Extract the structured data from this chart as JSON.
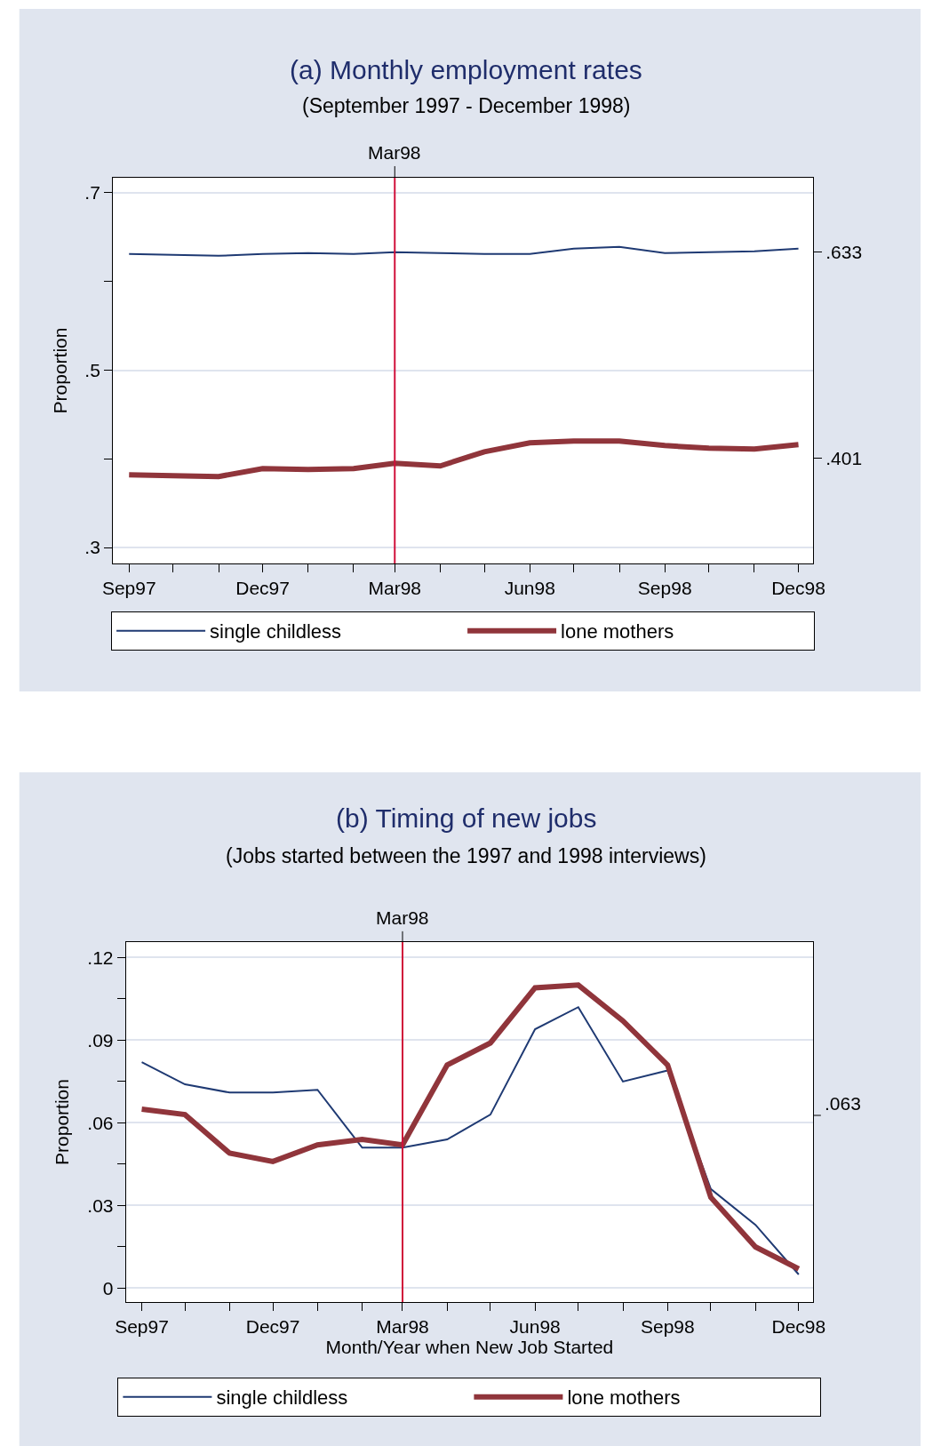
{
  "chart_data": [
    {
      "type": "line",
      "title": "(a) Monthly employment rates",
      "subtitle": "(September 1997 - December 1998)",
      "ylabel": "Proportion",
      "x": [
        "1997-09",
        "1997-10",
        "1997-11",
        "1997-12",
        "1998-01",
        "1998-02",
        "1998-03",
        "1998-04",
        "1998-05",
        "1998-06",
        "1998-07",
        "1998-08",
        "1998-09",
        "1998-10",
        "1998-11",
        "1998-12"
      ],
      "series": [
        {
          "name": "single childless",
          "color": "#1f3a73",
          "values": [
            0.631,
            0.63,
            0.629,
            0.631,
            0.632,
            0.631,
            0.633,
            0.632,
            0.631,
            0.631,
            0.637,
            0.639,
            0.632,
            0.633,
            0.634,
            0.637
          ]
        },
        {
          "name": "lone mothers",
          "color": "#90353b",
          "values": [
            0.382,
            0.381,
            0.38,
            0.389,
            0.388,
            0.389,
            0.395,
            0.392,
            0.408,
            0.418,
            0.42,
            0.42,
            0.415,
            0.412,
            0.411,
            0.416
          ]
        }
      ],
      "xlim": [
        "1997-08-21",
        "1998-12-11"
      ],
      "xticks": [
        {
          "value": "1997-09",
          "label": "Sep97"
        },
        {
          "value": "1997-10",
          "label": null
        },
        {
          "value": "1997-11",
          "label": null
        },
        {
          "value": "1997-12",
          "label": "Dec97"
        },
        {
          "value": "1998-01",
          "label": null
        },
        {
          "value": "1998-02",
          "label": null
        },
        {
          "value": "1998-03",
          "label": "Mar98"
        },
        {
          "value": "1998-04",
          "label": null
        },
        {
          "value": "1998-05",
          "label": null
        },
        {
          "value": "1998-06",
          "label": "Jun98"
        },
        {
          "value": "1998-07",
          "label": null
        },
        {
          "value": "1998-08",
          "label": null
        },
        {
          "value": "1998-09",
          "label": "Sep98"
        },
        {
          "value": "1998-10",
          "label": null
        },
        {
          "value": "1998-11",
          "label": null
        },
        {
          "value": "1998-12",
          "label": "Dec98"
        }
      ],
      "ylim": [
        0.282,
        0.717
      ],
      "yticks": [
        {
          "value": 0.7,
          "label": ".7"
        },
        {
          "value": 0.6,
          "label": null
        },
        {
          "value": 0.5,
          "label": ".5"
        },
        {
          "value": 0.4,
          "label": null
        },
        {
          "value": 0.3,
          "label": ".3"
        }
      ],
      "y2lim": [
        0.282,
        0.717
      ],
      "y2ticks": [
        {
          "value": 0.633,
          "label": ".633"
        },
        {
          "value": 0.401,
          "label": ".401"
        }
      ],
      "ref_lines": [
        {
          "axis": "x",
          "value": "1998-03",
          "label": "Mar98",
          "color": "#d0103a"
        }
      ],
      "grid": "y",
      "legend": "bottom"
    },
    {
      "type": "line",
      "title": "(b) Timing of new jobs",
      "subtitle": "(Jobs started between the 1997 and 1998 interviews)",
      "ylabel": "Proportion",
      "xlabel": "Month/Year when New Job Started",
      "x": [
        "1997-09",
        "1997-10",
        "1997-11",
        "1997-12",
        "1998-01",
        "1998-02",
        "1998-03",
        "1998-04",
        "1998-05",
        "1998-06",
        "1998-07",
        "1998-08",
        "1998-09",
        "1998-10",
        "1998-11",
        "1998-12"
      ],
      "series": [
        {
          "name": "single childless",
          "color": "#1f3a73",
          "values": [
            0.082,
            0.074,
            0.071,
            0.071,
            0.072,
            0.051,
            0.051,
            0.054,
            0.063,
            0.094,
            0.102,
            0.075,
            0.079,
            0.036,
            0.023,
            0.005
          ]
        },
        {
          "name": "lone mothers",
          "color": "#90353b",
          "values": [
            0.065,
            0.063,
            0.049,
            0.046,
            0.052,
            0.054,
            0.052,
            0.081,
            0.089,
            0.109,
            0.11,
            0.097,
            0.081,
            0.033,
            0.015,
            0.007
          ]
        }
      ],
      "xlim": [
        "1997-08-21",
        "1998-12-11"
      ],
      "xticks": [
        {
          "value": "1997-09",
          "label": "Sep97"
        },
        {
          "value": "1997-10",
          "label": null
        },
        {
          "value": "1997-11",
          "label": null
        },
        {
          "value": "1997-12",
          "label": "Dec97"
        },
        {
          "value": "1998-01",
          "label": null
        },
        {
          "value": "1998-02",
          "label": null
        },
        {
          "value": "1998-03",
          "label": "Mar98"
        },
        {
          "value": "1998-04",
          "label": null
        },
        {
          "value": "1998-05",
          "label": null
        },
        {
          "value": "1998-06",
          "label": "Jun98"
        },
        {
          "value": "1998-07",
          "label": null
        },
        {
          "value": "1998-08",
          "label": null
        },
        {
          "value": "1998-09",
          "label": "Sep98"
        },
        {
          "value": "1998-10",
          "label": null
        },
        {
          "value": "1998-11",
          "label": null
        },
        {
          "value": "1998-12",
          "label": "Dec98"
        }
      ],
      "ylim": [
        -0.005,
        0.1256
      ],
      "yticks": [
        {
          "value": 0.12,
          "label": ".12"
        },
        {
          "value": 0.105,
          "label": null
        },
        {
          "value": 0.09,
          "label": ".09"
        },
        {
          "value": 0.075,
          "label": null
        },
        {
          "value": 0.06,
          "label": ".06"
        },
        {
          "value": 0.045,
          "label": null
        },
        {
          "value": 0.03,
          "label": ".03"
        },
        {
          "value": 0.015,
          "label": null
        },
        {
          "value": 0,
          "label": "0"
        }
      ],
      "annotations": [
        ".063"
      ],
      "ref_lines": [
        {
          "axis": "x",
          "value": "1998-03",
          "label": "Mar98",
          "color": "#d0103a"
        }
      ],
      "grid": "y",
      "legend": "bottom"
    }
  ]
}
